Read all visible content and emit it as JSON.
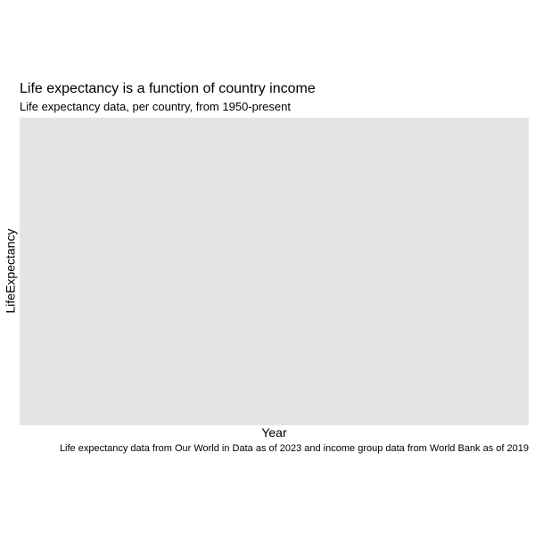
{
  "chart_data": {
    "type": "line",
    "title": "Life expectancy is a function of country income",
    "subtitle": "Life expectancy data, per country, from 1950-present",
    "xlabel": "Year",
    "ylabel": "LifeExpectancy",
    "caption": "Life expectancy data from Our World in Data as of 2023 and income group data from World Bank as of 2019",
    "series": [],
    "grid": false,
    "legend": "none"
  },
  "colors": {
    "panel_background": "#e5e5e5",
    "page_background": "#ffffff",
    "text": "#000000"
  }
}
